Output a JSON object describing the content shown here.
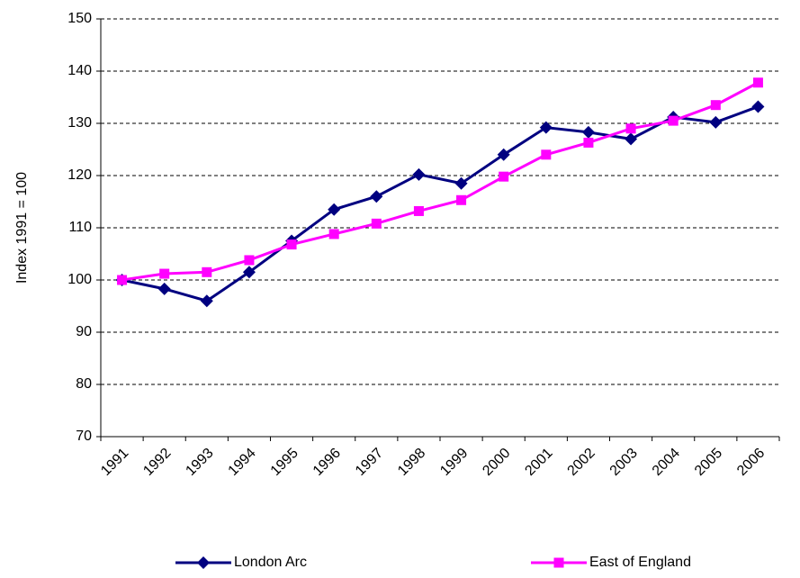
{
  "chart_data": {
    "type": "line",
    "y_label": "Index 1991 = 100",
    "categories": [
      "1991",
      "1992",
      "1993",
      "1994",
      "1995",
      "1996",
      "1997",
      "1998",
      "1999",
      "2000",
      "2001",
      "2002",
      "2003",
      "2004",
      "2005",
      "2006"
    ],
    "series": [
      {
        "name": "London Arc",
        "color": "#000080",
        "marker": "diamond",
        "values": [
          100,
          98.3,
          96,
          101.5,
          107.5,
          113.5,
          116,
          120.2,
          118.5,
          124,
          129.2,
          128.3,
          127,
          131.2,
          130.2,
          133.2
        ]
      },
      {
        "name": "East of England",
        "color": "#ff00ff",
        "marker": "square",
        "values": [
          100,
          101.2,
          101.5,
          103.8,
          106.8,
          108.8,
          110.8,
          113.2,
          115.3,
          119.8,
          124,
          126.3,
          129,
          130.5,
          133.5,
          137.8
        ]
      }
    ],
    "ylim": [
      70,
      150
    ],
    "yticks": [
      70,
      80,
      90,
      100,
      110,
      120,
      130,
      140,
      150
    ],
    "grid": true,
    "legend": "bottom"
  }
}
